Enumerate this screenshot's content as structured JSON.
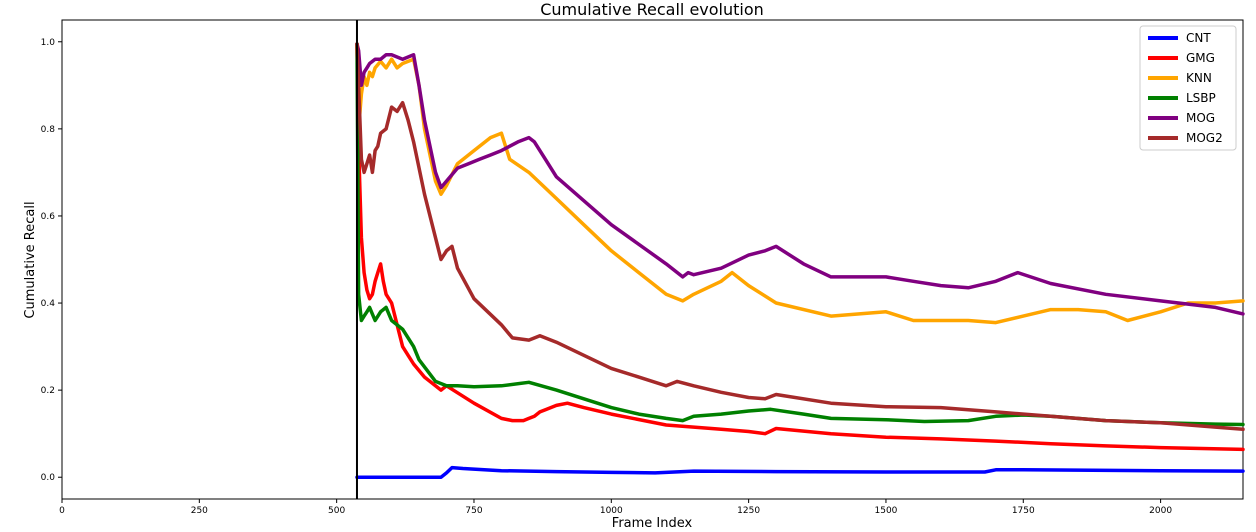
{
  "chart_data": {
    "type": "line",
    "title": "Cumulative Recall evolution",
    "xlabel": "Frame Index",
    "ylabel": "Cumulative Recall",
    "xlim": [
      0,
      2150
    ],
    "ylim": [
      -0.05,
      1.05
    ],
    "xticks": [
      0,
      250,
      500,
      750,
      1000,
      1250,
      1500,
      1750,
      2000
    ],
    "yticks": [
      0.0,
      0.2,
      0.4,
      0.6,
      0.8,
      1.0
    ],
    "xtick_labels": [
      "0",
      "250",
      "500",
      "750",
      "1000",
      "1250",
      "1500",
      "1750",
      "2000"
    ],
    "ytick_labels": [
      "0.0",
      "0.2",
      "0.4",
      "0.6",
      "0.8",
      "1.0"
    ],
    "grid": false,
    "legend_position": "top-right",
    "vertical_line": {
      "x": 537,
      "color": "#000000"
    },
    "series": [
      {
        "name": "CNT",
        "color": "#0000ff",
        "x": [
          537,
          600,
          650,
          690,
          700,
          710,
          730,
          800,
          900,
          1000,
          1080,
          1100,
          1150,
          1300,
          1500,
          1680,
          1700,
          1750,
          2000,
          2150
        ],
        "y": [
          0.0,
          0.0,
          0.0,
          0.0,
          0.01,
          0.022,
          0.02,
          0.015,
          0.013,
          0.011,
          0.01,
          0.011,
          0.014,
          0.013,
          0.012,
          0.012,
          0.017,
          0.017,
          0.015,
          0.014
        ]
      },
      {
        "name": "GMG",
        "color": "#ff0000",
        "x": [
          537,
          540,
          545,
          550,
          555,
          560,
          565,
          570,
          575,
          580,
          585,
          590,
          600,
          610,
          620,
          630,
          640,
          660,
          690,
          700,
          750,
          800,
          820,
          840,
          850,
          860,
          870,
          880,
          900,
          920,
          950,
          1000,
          1100,
          1200,
          1250,
          1280,
          1300,
          1400,
          1500,
          1600,
          1700,
          1800,
          1900,
          2000,
          2150
        ],
        "y": [
          0.995,
          0.76,
          0.55,
          0.47,
          0.43,
          0.41,
          0.42,
          0.45,
          0.47,
          0.49,
          0.45,
          0.42,
          0.4,
          0.35,
          0.3,
          0.28,
          0.26,
          0.23,
          0.2,
          0.21,
          0.17,
          0.135,
          0.13,
          0.13,
          0.135,
          0.14,
          0.15,
          0.155,
          0.165,
          0.17,
          0.16,
          0.145,
          0.12,
          0.11,
          0.105,
          0.1,
          0.112,
          0.1,
          0.092,
          0.088,
          0.083,
          0.077,
          0.072,
          0.068,
          0.064
        ]
      },
      {
        "name": "KNN",
        "color": "#ffa500",
        "x": [
          537,
          540,
          545,
          550,
          555,
          560,
          565,
          570,
          580,
          590,
          600,
          610,
          620,
          630,
          640,
          650,
          660,
          680,
          690,
          700,
          720,
          750,
          780,
          800,
          815,
          850,
          900,
          950,
          1000,
          1050,
          1100,
          1130,
          1150,
          1200,
          1220,
          1250,
          1300,
          1400,
          1500,
          1550,
          1650,
          1700,
          1750,
          1800,
          1850,
          1900,
          1940,
          2000,
          2050,
          2100,
          2150
        ],
        "y": [
          0.995,
          0.8,
          0.88,
          0.92,
          0.9,
          0.93,
          0.92,
          0.94,
          0.955,
          0.94,
          0.96,
          0.94,
          0.95,
          0.955,
          0.96,
          0.9,
          0.8,
          0.68,
          0.65,
          0.67,
          0.72,
          0.75,
          0.78,
          0.79,
          0.73,
          0.7,
          0.64,
          0.58,
          0.52,
          0.47,
          0.42,
          0.405,
          0.42,
          0.45,
          0.47,
          0.44,
          0.4,
          0.37,
          0.38,
          0.36,
          0.36,
          0.355,
          0.37,
          0.385,
          0.385,
          0.38,
          0.36,
          0.38,
          0.4,
          0.4,
          0.405
        ]
      },
      {
        "name": "LSBP",
        "color": "#008000",
        "x": [
          537,
          540,
          545,
          550,
          555,
          560,
          570,
          580,
          590,
          600,
          620,
          640,
          650,
          680,
          700,
          720,
          750,
          800,
          850,
          900,
          950,
          1000,
          1050,
          1100,
          1130,
          1150,
          1200,
          1250,
          1290,
          1350,
          1400,
          1500,
          1570,
          1650,
          1700,
          1750,
          1800,
          1900,
          2000,
          2100,
          2150
        ],
        "y": [
          0.995,
          0.42,
          0.36,
          0.37,
          0.38,
          0.39,
          0.36,
          0.38,
          0.39,
          0.36,
          0.34,
          0.3,
          0.27,
          0.22,
          0.21,
          0.21,
          0.208,
          0.21,
          0.218,
          0.2,
          0.18,
          0.16,
          0.145,
          0.135,
          0.13,
          0.14,
          0.145,
          0.152,
          0.156,
          0.145,
          0.135,
          0.132,
          0.128,
          0.13,
          0.14,
          0.143,
          0.14,
          0.13,
          0.125,
          0.122,
          0.121
        ]
      },
      {
        "name": "MOG",
        "color": "#800080",
        "x": [
          537,
          540,
          545,
          550,
          555,
          560,
          570,
          580,
          590,
          600,
          620,
          640,
          650,
          660,
          680,
          690,
          700,
          720,
          740,
          760,
          780,
          800,
          830,
          850,
          860,
          880,
          900,
          1000,
          1100,
          1130,
          1140,
          1150,
          1200,
          1250,
          1280,
          1300,
          1350,
          1400,
          1500,
          1550,
          1600,
          1650,
          1700,
          1740,
          1800,
          1900,
          2000,
          2100,
          2150
        ],
        "y": [
          0.995,
          0.98,
          0.9,
          0.93,
          0.94,
          0.95,
          0.96,
          0.96,
          0.97,
          0.97,
          0.96,
          0.97,
          0.9,
          0.82,
          0.7,
          0.665,
          0.68,
          0.71,
          0.72,
          0.73,
          0.74,
          0.75,
          0.77,
          0.78,
          0.77,
          0.73,
          0.69,
          0.58,
          0.49,
          0.46,
          0.47,
          0.465,
          0.48,
          0.51,
          0.52,
          0.53,
          0.49,
          0.46,
          0.46,
          0.45,
          0.44,
          0.435,
          0.45,
          0.47,
          0.445,
          0.42,
          0.405,
          0.39,
          0.375
        ]
      },
      {
        "name": "MOG2",
        "color": "#a52a2a",
        "x": [
          537,
          540,
          545,
          550,
          555,
          560,
          565,
          570,
          575,
          580,
          590,
          600,
          610,
          620,
          630,
          640,
          660,
          680,
          690,
          700,
          710,
          720,
          750,
          800,
          820,
          850,
          870,
          900,
          950,
          1000,
          1050,
          1100,
          1120,
          1150,
          1200,
          1250,
          1280,
          1300,
          1400,
          1500,
          1600,
          1700,
          1800,
          1900,
          2000,
          2100,
          2150
        ],
        "y": [
          0.995,
          0.9,
          0.73,
          0.7,
          0.72,
          0.74,
          0.7,
          0.75,
          0.76,
          0.79,
          0.8,
          0.85,
          0.84,
          0.86,
          0.82,
          0.77,
          0.65,
          0.55,
          0.5,
          0.52,
          0.53,
          0.48,
          0.41,
          0.35,
          0.32,
          0.315,
          0.325,
          0.31,
          0.28,
          0.25,
          0.23,
          0.21,
          0.22,
          0.21,
          0.195,
          0.183,
          0.18,
          0.19,
          0.17,
          0.162,
          0.16,
          0.15,
          0.14,
          0.13,
          0.125,
          0.115,
          0.11
        ]
      }
    ]
  }
}
